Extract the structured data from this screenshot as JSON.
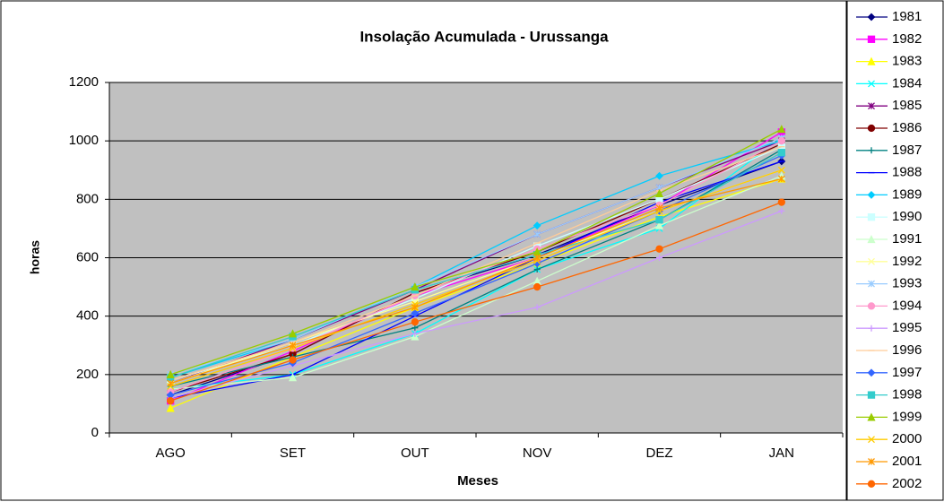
{
  "chart_data": {
    "type": "line",
    "title": "Insolação Acumulada - Urussanga",
    "x_label": "Meses",
    "y_label": "horas",
    "categories": [
      "AGO",
      "SET",
      "OUT",
      "NOV",
      "DEZ",
      "JAN"
    ],
    "ylim": [
      0,
      1200
    ],
    "yticks": [
      0,
      200,
      400,
      600,
      800,
      1000,
      1200
    ],
    "grid": true,
    "legend": "right",
    "series": [
      {
        "name": "1981",
        "color": "#000080",
        "values": [
          130,
          270,
          480,
          610,
          780,
          930
        ]
      },
      {
        "name": "1982",
        "color": "#ff00ff",
        "values": [
          110,
          280,
          470,
          600,
          780,
          1030
        ]
      },
      {
        "name": "1983",
        "color": "#ffff00",
        "values": [
          85,
          260,
          430,
          580,
          740,
          870
        ]
      },
      {
        "name": "1984",
        "color": "#00ffff",
        "values": [
          150,
          200,
          340,
          560,
          700,
          1010
        ]
      },
      {
        "name": "1985",
        "color": "#800080",
        "values": [
          170,
          320,
          490,
          680,
          840,
          1000
        ]
      },
      {
        "name": "1986",
        "color": "#800000",
        "values": [
          140,
          270,
          480,
          620,
          800,
          990
        ]
      },
      {
        "name": "1987",
        "color": "#008080",
        "values": [
          160,
          260,
          360,
          560,
          730,
          970
        ]
      },
      {
        "name": "1988",
        "color": "#0000ff",
        "values": [
          120,
          200,
          400,
          600,
          790,
          930
        ]
      },
      {
        "name": "1989",
        "color": "#00ccff",
        "values": [
          190,
          320,
          500,
          710,
          880,
          1000
        ]
      },
      {
        "name": "1990",
        "color": "#ccffff",
        "values": [
          180,
          300,
          460,
          640,
          800,
          980
        ]
      },
      {
        "name": "1991",
        "color": "#ccffcc",
        "values": [
          150,
          190,
          330,
          520,
          710,
          880
        ]
      },
      {
        "name": "1992",
        "color": "#ffff99",
        "values": [
          170,
          310,
          450,
          600,
          760,
          900
        ]
      },
      {
        "name": "1993",
        "color": "#99ccff",
        "values": [
          200,
          320,
          500,
          680,
          840,
          1010
        ]
      },
      {
        "name": "1994",
        "color": "#ff99cc",
        "values": [
          140,
          290,
          470,
          630,
          780,
          1000
        ]
      },
      {
        "name": "1995",
        "color": "#cc99ff",
        "values": [
          120,
          230,
          340,
          430,
          600,
          760
        ]
      },
      {
        "name": "1996",
        "color": "#ffcc99",
        "values": [
          180,
          310,
          470,
          650,
          830,
          980
        ]
      },
      {
        "name": "1997",
        "color": "#3366ff",
        "values": [
          130,
          240,
          410,
          580,
          760,
          950
        ]
      },
      {
        "name": "1998",
        "color": "#33cccc",
        "values": [
          190,
          330,
          490,
          610,
          730,
          960
        ]
      },
      {
        "name": "1999",
        "color": "#99cc00",
        "values": [
          200,
          340,
          500,
          620,
          820,
          1040
        ]
      },
      {
        "name": "2000",
        "color": "#ffcc00",
        "values": [
          160,
          290,
          440,
          590,
          760,
          900
        ]
      },
      {
        "name": "2001",
        "color": "#ff9900",
        "values": [
          170,
          300,
          430,
          600,
          770,
          870
        ]
      },
      {
        "name": "2002",
        "color": "#ff6600",
        "values": [
          110,
          250,
          380,
          500,
          630,
          790
        ]
      }
    ]
  }
}
